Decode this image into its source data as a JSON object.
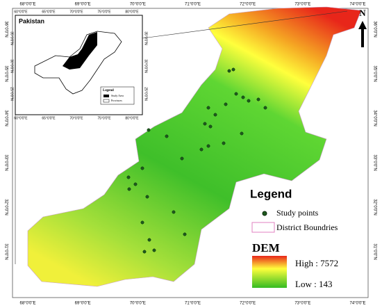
{
  "map": {
    "top_ticks": [
      "68°0'0\"E",
      "69°0'0\"E",
      "70°0'0\"E",
      "71°0'0\"E",
      "72°0'0\"E",
      "73°0'0\"E",
      "74°0'0\"E"
    ],
    "side_ticks": [
      "36°0'0\"N",
      "35°0'0\"N",
      "34°0'0\"N",
      "33°0'0\"N",
      "32°0'0\"N",
      "31°0'0\"N"
    ],
    "north": "N",
    "inset": {
      "title": "Pakistan",
      "top_ticks": [
        "60°0'0\"E",
        "65°0'0\"E",
        "70°0'0\"E",
        "75°0'0\"E",
        "80°0'0\"E"
      ],
      "side_ticks": [
        "35°0'0\"N",
        "30°0'0\"N",
        "25°0'0\"N"
      ],
      "legend_title": "Legend",
      "legend_items": [
        "Study Area",
        "Provinces"
      ]
    },
    "legend": {
      "title": "Legend",
      "study_points": "Study points",
      "district": "District Boundries",
      "dem": "DEM",
      "high": "High : 7572",
      "low": "Low : 143"
    }
  }
}
